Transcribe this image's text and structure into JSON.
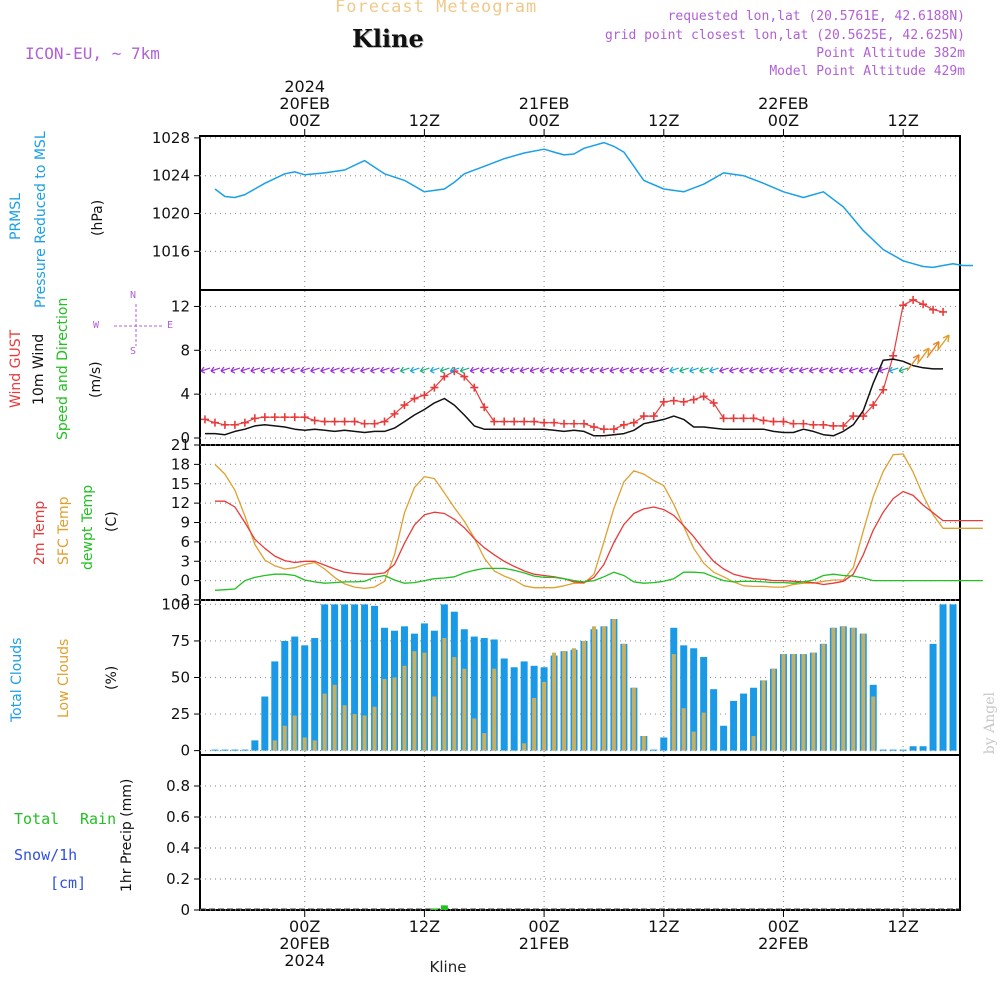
{
  "header": {
    "title": "Forecast Meteogram",
    "station": "Kline",
    "model": "ICON-EU, ~ 7km",
    "requested": "requested lon,lat (20.5761E, 42.6188N)",
    "gridpoint": "grid point closest lon,lat (20.5625E, 42.625N)",
    "point_altitude": "Point Altitude 382m",
    "model_altitude": "Model Point Altitude 429m"
  },
  "time_axis": {
    "top_year": "2024",
    "ticks": [
      {
        "hour": 0,
        "label": "00Z",
        "date": "20FEB",
        "year": "2024"
      },
      {
        "hour": 12,
        "label": "12Z",
        "date": "",
        "year": ""
      },
      {
        "hour": 24,
        "label": "00Z",
        "date": "21FEB",
        "year": ""
      },
      {
        "hour": 36,
        "label": "12Z",
        "date": "",
        "year": ""
      },
      {
        "hour": 48,
        "label": "00Z",
        "date": "22FEB",
        "year": ""
      },
      {
        "hour": 60,
        "label": "12Z",
        "date": "",
        "year": ""
      }
    ],
    "bottom_year": "2024",
    "footer_station": "Kline"
  },
  "panels": {
    "pressure": {
      "label1": "PRMSL",
      "label2": "Pressure Reduced to MSL",
      "unit": "(hPa)"
    },
    "wind": {
      "label_gust": "Wind GUST",
      "label_wind": "10m Wind",
      "label_dir": "Speed and Direction",
      "unit": "(m/s)",
      "compass_n": "N",
      "compass_s": "S",
      "compass_w": "W",
      "compass_e": "E"
    },
    "temp": {
      "label_2m": "2m Temp",
      "label_sfc": "SFC Temp",
      "label_dew": "dewpt Temp",
      "unit": "(C)"
    },
    "clouds": {
      "label_total": "Total Clouds",
      "label_low": "Low Clouds",
      "unit": "(%)"
    },
    "precip": {
      "label_total": "Total",
      "label_rain": "Rain",
      "label_snow": "Snow/1h",
      "label_cm": "[cm]",
      "unit": "1hr Precip (mm)"
    }
  },
  "credit": "by Angel",
  "colors": {
    "pressure": "#1aa0e6",
    "gust": "#e83c3c",
    "wind": "#111111",
    "wind_arrows": "#9a2fd6",
    "temp2m": "#e83c3c",
    "sfc": "#e0a030",
    "dew": "#22c022",
    "total_clouds": "#1a9ae6",
    "low_clouds": "#c6ae62",
    "rain": "#22c022",
    "snow": "#3050e0"
  },
  "chart_data": [
    {
      "type": "line",
      "title": "PRMSL",
      "ylabel": "(hPa)",
      "ylim": [
        1013.5,
        1028.2
      ],
      "yticks": [
        1016,
        1020,
        1024,
        1028
      ],
      "x_hours": [
        -9,
        -8,
        -7,
        -6,
        -4,
        -2,
        -1,
        0,
        2,
        4,
        6,
        8,
        10,
        12,
        14,
        15,
        16,
        18,
        20,
        22,
        24,
        25,
        26,
        27,
        28,
        30,
        31,
        32,
        34,
        36,
        38,
        40,
        42,
        44,
        46,
        48,
        50,
        52,
        54,
        56,
        58,
        60,
        61,
        62,
        63,
        64,
        65,
        66,
        67
      ],
      "series": [
        {
          "values": [
            1022.6,
            1021.8,
            1021.7,
            1022.0,
            1023.2,
            1024.2,
            1024.4,
            1024.1,
            1024.3,
            1024.6,
            1025.6,
            1024.2,
            1023.5,
            1022.3,
            1022.6,
            1023.3,
            1024.2,
            1025.0,
            1025.8,
            1026.4,
            1026.8,
            1026.5,
            1026.2,
            1026.3,
            1026.9,
            1027.5,
            1027.1,
            1026.5,
            1023.5,
            1022.6,
            1022.3,
            1023.1,
            1024.3,
            1024.0,
            1023.2,
            1022.3,
            1021.7,
            1022.3,
            1020.7,
            1018.2,
            1016.2,
            1015.0,
            1014.7,
            1014.4,
            1014.3,
            1014.5,
            1014.7,
            1014.5,
            1014.5
          ]
        }
      ]
    },
    {
      "type": "line",
      "title": "Wind GUST / 10m Wind",
      "ylabel": "(m/s)",
      "ylim": [
        0,
        13.5
      ],
      "yticks": [
        0,
        4,
        8,
        12
      ],
      "x_hours": [
        -10,
        -9,
        -8,
        -7,
        -6,
        -5,
        -4,
        -3,
        -2,
        -1,
        0,
        1,
        2,
        3,
        4,
        5,
        6,
        7,
        8,
        9,
        10,
        11,
        12,
        13,
        14,
        15,
        16,
        17,
        18,
        19,
        20,
        21,
        22,
        23,
        24,
        25,
        26,
        27,
        28,
        29,
        30,
        31,
        32,
        33,
        34,
        35,
        36,
        37,
        38,
        39,
        40,
        41,
        42,
        43,
        44,
        45,
        46,
        47,
        48,
        49,
        50,
        51,
        52,
        53,
        54,
        55,
        56,
        57,
        58,
        59,
        60,
        61,
        62,
        63,
        64
      ],
      "series": [
        {
          "name": "Wind GUST",
          "values": [
            1.7,
            1.4,
            1.2,
            1.2,
            1.4,
            1.8,
            1.9,
            1.9,
            1.9,
            1.9,
            1.9,
            1.6,
            1.5,
            1.5,
            1.5,
            1.5,
            1.3,
            1.3,
            1.5,
            2.2,
            3.0,
            3.6,
            3.9,
            4.6,
            5.6,
            6.1,
            5.6,
            4.6,
            2.8,
            1.5,
            1.5,
            1.5,
            1.5,
            1.5,
            1.4,
            1.4,
            1.3,
            1.3,
            1.3,
            1.0,
            0.8,
            0.8,
            1.2,
            1.4,
            2.0,
            2.0,
            3.3,
            3.4,
            3.3,
            3.5,
            3.8,
            3.2,
            1.8,
            1.8,
            1.8,
            1.8,
            1.6,
            1.5,
            1.5,
            1.3,
            1.3,
            1.2,
            1.2,
            1.1,
            1.1,
            2.0,
            2.0,
            3.0,
            4.4,
            7.5,
            12.1,
            12.6,
            12.2,
            11.7,
            11.5
          ]
        },
        {
          "name": "10m Wind",
          "values": [
            0.4,
            0.4,
            0.3,
            0.6,
            0.8,
            1.1,
            1.2,
            1.1,
            1.0,
            0.8,
            0.7,
            0.8,
            0.7,
            0.6,
            0.7,
            0.6,
            0.5,
            0.6,
            0.6,
            0.9,
            1.5,
            2.1,
            2.6,
            3.2,
            3.6,
            3.0,
            2.1,
            1.1,
            0.8,
            0.8,
            0.8,
            0.8,
            0.8,
            0.8,
            0.8,
            0.7,
            0.6,
            0.7,
            0.6,
            0.2,
            0.2,
            0.3,
            0.4,
            0.7,
            1.3,
            1.5,
            1.7,
            2.0,
            1.7,
            1.0,
            1.0,
            0.9,
            0.8,
            0.8,
            0.8,
            0.8,
            0.8,
            0.6,
            0.5,
            0.5,
            0.8,
            0.6,
            0.3,
            0.2,
            0.6,
            1.2,
            2.5,
            5.0,
            7.1,
            7.2,
            7.0,
            6.6,
            6.4,
            6.3,
            6.3
          ]
        }
      ]
    },
    {
      "type": "line",
      "title": "2m Temp / SFC Temp / dewpt Temp",
      "ylabel": "(C)",
      "ylim": [
        -3,
        21
      ],
      "yticks": [
        -3,
        0,
        3,
        6,
        9,
        12,
        15,
        18,
        21
      ],
      "x_hours": [
        -9,
        -8,
        -7,
        -6,
        -5,
        -4,
        -3,
        -2,
        -1,
        0,
        1,
        2,
        3,
        4,
        5,
        6,
        7,
        8,
        9,
        10,
        11,
        12,
        13,
        14,
        15,
        16,
        17,
        18,
        19,
        20,
        21,
        22,
        23,
        24,
        25,
        26,
        27,
        28,
        29,
        30,
        31,
        32,
        33,
        34,
        35,
        36,
        37,
        38,
        39,
        40,
        41,
        42,
        43,
        44,
        45,
        46,
        47,
        48,
        49,
        50,
        51,
        52,
        53,
        54,
        55,
        56,
        57,
        58,
        59,
        60,
        61,
        62,
        63,
        64,
        65,
        66,
        67,
        68
      ],
      "series": [
        {
          "name": "2m Temp",
          "values": [
            12.3,
            12.3,
            11.4,
            9.0,
            6.4,
            5.0,
            3.8,
            3.1,
            2.8,
            3.0,
            3.0,
            2.4,
            1.8,
            1.3,
            1.1,
            1.0,
            1.0,
            1.2,
            2.5,
            5.8,
            8.6,
            10.2,
            10.6,
            10.4,
            9.5,
            8.2,
            6.5,
            5.1,
            4.0,
            3.0,
            2.2,
            1.5,
            1.0,
            0.8,
            0.6,
            0.3,
            -0.2,
            -0.3,
            0.5,
            2.5,
            5.9,
            8.7,
            10.4,
            11.1,
            11.4,
            11.0,
            10.1,
            8.5,
            6.8,
            4.8,
            3.0,
            1.8,
            1.0,
            0.6,
            0.3,
            0.2,
            0.0,
            0.0,
            -0.1,
            -0.2,
            -0.3,
            -0.6,
            -0.4,
            -0.1,
            1.0,
            4.0,
            7.8,
            10.6,
            12.7,
            13.8,
            13.2,
            11.7,
            10.5,
            9.3,
            9.3,
            9.3,
            9.3,
            9.3
          ]
        },
        {
          "name": "SFC Temp",
          "values": [
            18.0,
            16.5,
            14.0,
            10.0,
            5.6,
            3.2,
            2.3,
            1.8,
            2.0,
            2.5,
            2.8,
            1.8,
            0.5,
            -0.5,
            -1.0,
            -1.2,
            -1.0,
            -0.1,
            4.0,
            10.5,
            14.4,
            16.1,
            15.8,
            13.6,
            11.3,
            9.2,
            6.6,
            3.5,
            1.5,
            0.7,
            0.1,
            -0.8,
            -1.1,
            -1.1,
            -1.1,
            -0.8,
            -0.4,
            -0.4,
            1.0,
            6.0,
            11.2,
            15.3,
            17.0,
            16.5,
            15.5,
            14.7,
            11.8,
            8.4,
            5.0,
            2.7,
            1.3,
            0.6,
            -0.2,
            -0.8,
            -0.9,
            -0.9,
            -1.0,
            -1.0,
            -0.6,
            -0.4,
            -0.4,
            -0.1,
            0.1,
            0.1,
            2.0,
            7.7,
            13.0,
            16.9,
            19.5,
            19.6,
            16.8,
            13.2,
            10.2,
            8.1,
            8.1,
            8.1,
            8.1,
            8.1
          ]
        },
        {
          "name": "dewpt Temp",
          "values": [
            -1.5,
            -1.4,
            -1.3,
            0.0,
            0.5,
            0.8,
            1.0,
            1.0,
            0.8,
            0.1,
            -0.2,
            -0.4,
            -0.3,
            -0.2,
            -0.2,
            -0.1,
            0.5,
            0.8,
            0.1,
            -0.4,
            -0.3,
            0.0,
            0.3,
            0.4,
            0.6,
            1.2,
            1.6,
            1.9,
            1.9,
            1.9,
            1.6,
            1.2,
            0.7,
            0.5,
            0.5,
            0.3,
            0.0,
            -0.2,
            0.0,
            0.6,
            1.3,
            0.8,
            -0.2,
            -0.4,
            -0.3,
            -0.1,
            0.3,
            1.3,
            1.3,
            1.2,
            0.6,
            0.0,
            -0.2,
            -0.1,
            -0.1,
            -0.2,
            -0.3,
            -0.3,
            -0.4,
            -0.2,
            0.1,
            0.8,
            1.0,
            0.8,
            0.7,
            0.4,
            0.0,
            0.0,
            0.0,
            0.0,
            0.0,
            0.0,
            0.0,
            0.0,
            0.0,
            0.0,
            0.0,
            0.0
          ]
        }
      ]
    },
    {
      "type": "bar",
      "title": "Total Clouds / Low Clouds",
      "ylabel": "(%)",
      "ylim": [
        -3,
        103
      ],
      "yticks": [
        0,
        25,
        50,
        75,
        100
      ],
      "x_hours": [
        -9,
        -8,
        -7,
        -6,
        -5,
        -4,
        -3,
        -2,
        -1,
        0,
        1,
        2,
        3,
        4,
        5,
        6,
        7,
        8,
        9,
        10,
        11,
        12,
        13,
        14,
        15,
        16,
        17,
        18,
        19,
        20,
        21,
        22,
        23,
        24,
        25,
        26,
        27,
        28,
        29,
        30,
        31,
        32,
        33,
        34,
        35,
        36,
        37,
        38,
        39,
        40,
        41,
        42,
        43,
        44,
        45,
        46,
        47,
        48,
        49,
        50,
        51,
        52,
        53,
        54,
        55,
        56,
        57,
        58,
        59,
        60,
        61,
        62,
        63,
        64,
        65
      ],
      "series": [
        {
          "name": "Total Clouds",
          "values": [
            0,
            0,
            0,
            0,
            7,
            37,
            61,
            75,
            78,
            72,
            77,
            100,
            100,
            100,
            100,
            100,
            99,
            84,
            82,
            85,
            80,
            87,
            82,
            100,
            95,
            83,
            78,
            77,
            76,
            63,
            57,
            61,
            58,
            57,
            65,
            68,
            69,
            75,
            83,
            85,
            90,
            73,
            43,
            10,
            0,
            9,
            84,
            72,
            70,
            64,
            42,
            17,
            34,
            39,
            43,
            48,
            56,
            66,
            66,
            66,
            67,
            73,
            84,
            85,
            84,
            80,
            45,
            0,
            0,
            0,
            3,
            3,
            73,
            100,
            100
          ]
        },
        {
          "name": "Low Clouds",
          "values": [
            0,
            0,
            0,
            0,
            0,
            0,
            7,
            17,
            24,
            9,
            7,
            39,
            45,
            31,
            25,
            24,
            30,
            49,
            50,
            58,
            68,
            67,
            37,
            77,
            64,
            56,
            22,
            12,
            56,
            0,
            0,
            5,
            36,
            47,
            67,
            68,
            70,
            75,
            85,
            85,
            90,
            73,
            43,
            10,
            0,
            0,
            66,
            29,
            13,
            26,
            0,
            0,
            0,
            0,
            10,
            48,
            56,
            66,
            66,
            66,
            67,
            73,
            84,
            85,
            84,
            80,
            37,
            0,
            0,
            0,
            0,
            0,
            0,
            0,
            0
          ]
        }
      ]
    },
    {
      "type": "bar",
      "title": "1hr Precip",
      "ylabel": "1hr Precip (mm)",
      "ylim": [
        0,
        1.0
      ],
      "yticks": [
        0,
        0.2,
        0.4,
        0.6,
        0.8
      ],
      "x_hours": [
        13,
        14
      ],
      "series": [
        {
          "name": "Total Rain",
          "values": [
            0.01,
            0.03
          ]
        }
      ]
    }
  ]
}
